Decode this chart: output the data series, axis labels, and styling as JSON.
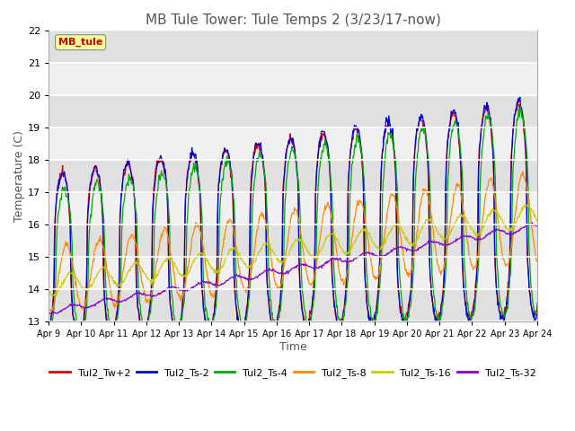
{
  "title": "MB Tule Tower: Tule Temps 2 (3/23/17-now)",
  "xlabel": "Time",
  "ylabel": "Temperature (C)",
  "ylim": [
    13.0,
    22.0
  ],
  "yticks": [
    13.0,
    14.0,
    15.0,
    16.0,
    17.0,
    18.0,
    19.0,
    20.0,
    21.0,
    22.0
  ],
  "xtick_labels": [
    "Apr 9",
    "Apr 10",
    "Apr 11",
    "Apr 12",
    "Apr 13",
    "Apr 14",
    "Apr 15",
    "Apr 16",
    "Apr 17",
    "Apr 18",
    "Apr 19",
    "Apr 20",
    "Apr 21",
    "Apr 22",
    "Apr 23",
    "Apr 24"
  ],
  "lines": {
    "Tul2_Tw+2": {
      "color": "#dd0000"
    },
    "Tul2_Ts-2": {
      "color": "#0000dd"
    },
    "Tul2_Ts-4": {
      "color": "#00aa00"
    },
    "Tul2_Ts-8": {
      "color": "#ff8800"
    },
    "Tul2_Ts-16": {
      "color": "#cccc00"
    },
    "Tul2_Ts-32": {
      "color": "#8800cc"
    }
  },
  "annotation_text": "MB_tule",
  "annotation_color": "#cc0000",
  "annotation_bg": "#ffff99",
  "plot_bg_light": "#f0f0f0",
  "plot_bg_dark": "#e0e0e0",
  "title_fontsize": 11,
  "figwidth": 6.4,
  "figheight": 4.8,
  "dpi": 100
}
